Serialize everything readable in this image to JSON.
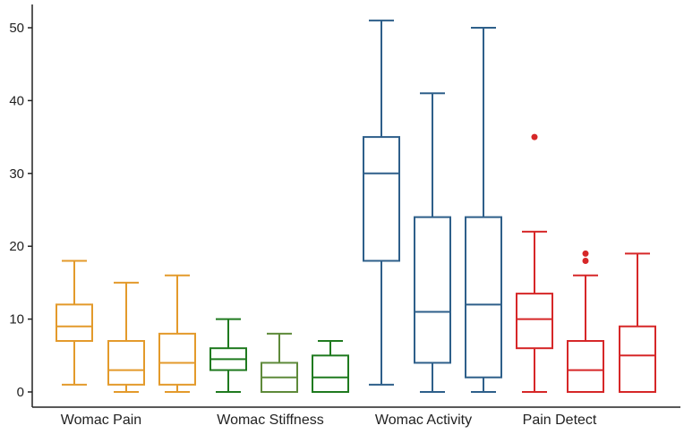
{
  "chart_data": {
    "type": "boxplot",
    "title": "",
    "xlabel": "",
    "ylabel": "",
    "ylim": [
      -2,
      52
    ],
    "yticks": [
      0,
      10,
      20,
      30,
      40,
      50
    ],
    "ytick_labels": [
      "0",
      "10",
      "20",
      "30",
      "40",
      "50"
    ],
    "grid": false,
    "legend": "none",
    "groups": [
      {
        "name": "Womac Pain",
        "color": "#E39A2B",
        "boxes": [
          {
            "whisker_low": 1,
            "q1": 7,
            "median": 9,
            "q3": 12,
            "whisker_high": 18,
            "outliers": []
          },
          {
            "whisker_low": 0,
            "q1": 1,
            "median": 3,
            "q3": 7,
            "whisker_high": 15,
            "outliers": []
          },
          {
            "whisker_low": 0,
            "q1": 1,
            "median": 4,
            "q3": 8,
            "whisker_high": 16,
            "outliers": []
          }
        ]
      },
      {
        "name": "Womac Stiffness",
        "color": "#1F7A1F",
        "boxes": [
          {
            "whisker_low": 0,
            "q1": 3,
            "median": 4.5,
            "q3": 6,
            "whisker_high": 10,
            "outliers": [],
            "color": "#1F7A1F"
          },
          {
            "whisker_low": 0,
            "q1": 0,
            "median": 2,
            "q3": 4,
            "whisker_high": 8,
            "outliers": [],
            "color": "#5E8A3A"
          },
          {
            "whisker_low": 0,
            "q1": 0,
            "median": 2,
            "q3": 5,
            "whisker_high": 7,
            "outliers": [],
            "color": "#1F7A1F"
          }
        ]
      },
      {
        "name": "Womac Activity",
        "color": "#2E5F8A",
        "boxes": [
          {
            "whisker_low": 1,
            "q1": 18,
            "median": 30,
            "q3": 35,
            "whisker_high": 51,
            "outliers": []
          },
          {
            "whisker_low": 0,
            "q1": 4,
            "median": 11,
            "q3": 24,
            "whisker_high": 41,
            "outliers": []
          },
          {
            "whisker_low": 0,
            "q1": 2,
            "median": 12,
            "q3": 24,
            "whisker_high": 50,
            "outliers": []
          }
        ]
      },
      {
        "name": "Pain Detect",
        "color": "#D62728",
        "boxes": [
          {
            "whisker_low": 0,
            "q1": 6,
            "median": 10,
            "q3": 13.5,
            "whisker_high": 22,
            "outliers": [
              35
            ]
          },
          {
            "whisker_low": 0,
            "q1": 0,
            "median": 3,
            "q3": 7,
            "whisker_high": 16,
            "outliers": [
              18,
              19
            ]
          },
          {
            "whisker_low": 0,
            "q1": 0,
            "median": 5,
            "q3": 9,
            "whisker_high": 19,
            "outliers": []
          }
        ]
      }
    ]
  }
}
